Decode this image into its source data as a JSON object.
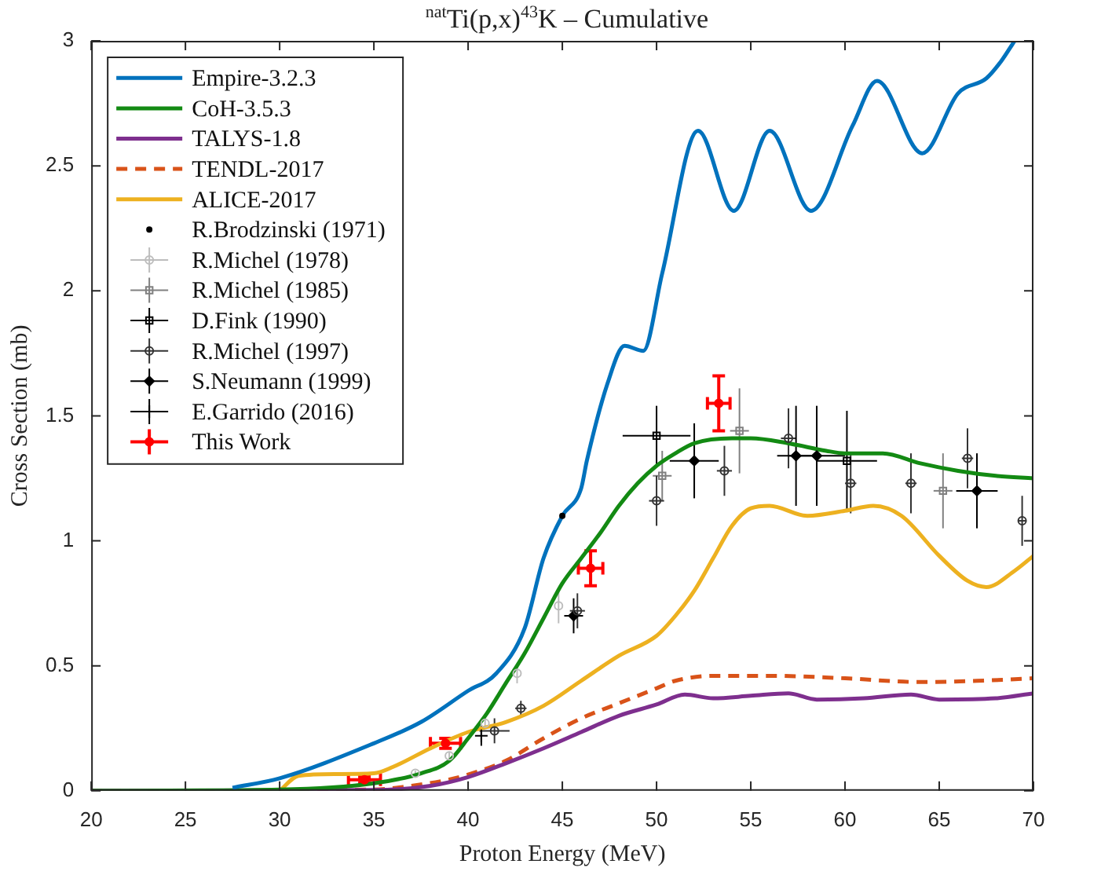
{
  "chart_data": {
    "type": "line",
    "title": "$^{nat}$Ti(p,x)$^{43}$K – Cumulative",
    "xlabel": "Proton Energy (MeV)",
    "ylabel": "Cross Section (mb)",
    "xlim": [
      20,
      70
    ],
    "xticks": [
      20,
      25,
      30,
      35,
      40,
      45,
      50,
      55,
      60,
      65,
      70
    ],
    "ylim": [
      0,
      3
    ],
    "yticks": [
      0,
      0.5,
      1,
      1.5,
      2,
      2.5,
      3
    ],
    "grid": false,
    "legend": "top left",
    "series": [
      {
        "name": "Empire-3.2.3",
        "type": "line",
        "color": "#0072bd",
        "line_style": "solid",
        "x": [
          27.5,
          30,
          35,
          37.5,
          40,
          41.5,
          43,
          44,
          45,
          46,
          46.3,
          47.4,
          48.3,
          49.3,
          50.3,
          52.2,
          54.1,
          56.0,
          58.2,
          60.4,
          61.7,
          64.1,
          66.0,
          67.5,
          68.3,
          69
        ],
        "values": [
          0.012,
          0.05,
          0.19,
          0.275,
          0.4,
          0.47,
          0.65,
          0.93,
          1.1,
          1.21,
          1.32,
          1.63,
          1.78,
          1.76,
          2.07,
          2.64,
          2.32,
          2.64,
          2.32,
          2.66,
          2.84,
          2.55,
          2.79,
          2.85,
          2.92,
          3.0
        ]
      },
      {
        "name": "CoH-3.5.3",
        "type": "line",
        "color": "#138a13",
        "line_style": "solid",
        "x": [
          20,
          30,
          35,
          37.5,
          39,
          40,
          41,
          42,
          43,
          44,
          45,
          46,
          47,
          48,
          49,
          50,
          51,
          52,
          54,
          55,
          57,
          59,
          60,
          62,
          64,
          66,
          68,
          70
        ],
        "values": [
          0,
          0.005,
          0.03,
          0.07,
          0.12,
          0.21,
          0.31,
          0.43,
          0.55,
          0.69,
          0.83,
          0.93,
          1.03,
          1.14,
          1.23,
          1.3,
          1.35,
          1.39,
          1.41,
          1.41,
          1.39,
          1.36,
          1.35,
          1.35,
          1.31,
          1.28,
          1.26,
          1.25
        ]
      },
      {
        "name": "TALYS-1.8",
        "type": "line",
        "color": "#7e2f8e",
        "line_style": "solid",
        "x": [
          20,
          35,
          38,
          40,
          42,
          44,
          46,
          48,
          50,
          51.5,
          53,
          55,
          57,
          58.5,
          61,
          63.5,
          65,
          68,
          70
        ],
        "values": [
          0,
          0.003,
          0.02,
          0.055,
          0.11,
          0.17,
          0.235,
          0.3,
          0.345,
          0.385,
          0.37,
          0.38,
          0.39,
          0.365,
          0.37,
          0.385,
          0.365,
          0.37,
          0.39
        ]
      },
      {
        "name": "TENDL-2017",
        "type": "line",
        "color": "#d95319",
        "line_style": "dashed",
        "x": [
          20,
          35,
          37,
          39,
          40,
          42,
          44,
          46,
          48,
          50,
          51,
          53,
          56,
          60,
          64,
          67,
          70
        ],
        "values": [
          0,
          0.005,
          0.02,
          0.045,
          0.065,
          0.12,
          0.21,
          0.29,
          0.35,
          0.41,
          0.44,
          0.46,
          0.46,
          0.45,
          0.435,
          0.44,
          0.45
        ]
      },
      {
        "name": "ALICE-2017",
        "type": "line",
        "color": "#edb120",
        "line_style": "solid",
        "x": [
          30,
          31,
          33,
          35,
          36,
          38,
          40,
          42,
          44,
          46,
          48,
          50,
          51,
          52,
          53,
          54,
          55,
          56,
          58,
          60,
          61.5,
          63,
          65,
          66.5,
          67.5,
          69,
          70
        ],
        "values": [
          0,
          0.06,
          0.067,
          0.07,
          0.095,
          0.17,
          0.235,
          0.275,
          0.34,
          0.44,
          0.54,
          0.62,
          0.7,
          0.8,
          0.93,
          1.06,
          1.13,
          1.14,
          1.1,
          1.12,
          1.14,
          1.1,
          0.94,
          0.84,
          0.815,
          0.88,
          0.94
        ]
      },
      {
        "name": "R.Brodzinski (1971)",
        "type": "scatter",
        "color": "#000000",
        "marker": "circle",
        "x": [
          45
        ],
        "values": [
          1.1
        ]
      },
      {
        "name": "R.Michel (1978)",
        "type": "scatter",
        "color": "#bdbdbd",
        "marker": "circle",
        "x": [
          37.2,
          39,
          40.9,
          42.6,
          44.8
        ],
        "values": [
          0.07,
          0.14,
          0.27,
          0.47,
          0.74
        ],
        "errors": [
          0.01,
          0.015,
          0.02,
          0.04,
          0.07
        ]
      },
      {
        "name": "R.Michel (1985)",
        "type": "scatter",
        "color": "#808080",
        "marker": "square",
        "x": [
          50.3,
          54.4,
          65.2
        ],
        "values": [
          1.26,
          1.44,
          1.2
        ],
        "errors": [
          0.1,
          0.17,
          0.15
        ],
        "xerrors": [
          0.5,
          0.5,
          0.5
        ]
      },
      {
        "name": "D.Fink (1990)",
        "type": "scatter",
        "color": "#000000",
        "marker": "square",
        "x": [
          50,
          60.1
        ],
        "values": [
          1.42,
          1.32
        ],
        "errors": [
          0.12,
          0.2
        ],
        "xerrors": [
          1.8,
          1.6
        ]
      },
      {
        "name": "R.Michel (1997)",
        "type": "scatter",
        "color": "#333333",
        "marker": "circle",
        "x": [
          41.4,
          42.8,
          45.8,
          50,
          53.6,
          57,
          60.3,
          63.5,
          66.5,
          69.4
        ],
        "values": [
          0.24,
          0.33,
          0.72,
          1.16,
          1.28,
          1.41,
          1.23,
          1.23,
          1.33,
          1.08
        ],
        "errors": [
          0.05,
          0.03,
          0.07,
          0.1,
          0.1,
          0.12,
          0.12,
          0.12,
          0.12,
          0.1
        ],
        "xerrors": [
          0.8,
          0.3,
          0.4,
          0.4,
          0.4,
          0.4,
          0.3,
          0.3,
          0.3,
          0.2
        ]
      },
      {
        "name": "S.Neumann (1999)",
        "type": "scatter",
        "color": "#000000",
        "marker": "diamond",
        "x": [
          45.6,
          52,
          57.4,
          58.5,
          67
        ],
        "values": [
          0.7,
          1.32,
          1.34,
          1.34,
          1.2
        ],
        "errors": [
          0.07,
          0.15,
          0.2,
          0.2,
          0.15
        ],
        "xerrors": [
          0.5,
          1.3,
          1,
          1.5,
          1.1
        ]
      },
      {
        "name": "E.Garrido (2016)",
        "type": "scatter",
        "color": "#000000",
        "marker": "cross",
        "x": [
          40.7
        ],
        "values": [
          0.22
        ],
        "errors": [
          0.04
        ]
      },
      {
        "name": "This Work",
        "type": "scatter",
        "color": "#ff0000",
        "marker": "circle",
        "x": [
          34.5,
          38.8,
          46.5,
          53.3
        ],
        "values": [
          0.044,
          0.19,
          0.89,
          1.55
        ],
        "errors": [
          0.012,
          0.02,
          0.07,
          0.11
        ],
        "xerrors": [
          0.85,
          0.8,
          0.65,
          0.6
        ]
      }
    ]
  }
}
